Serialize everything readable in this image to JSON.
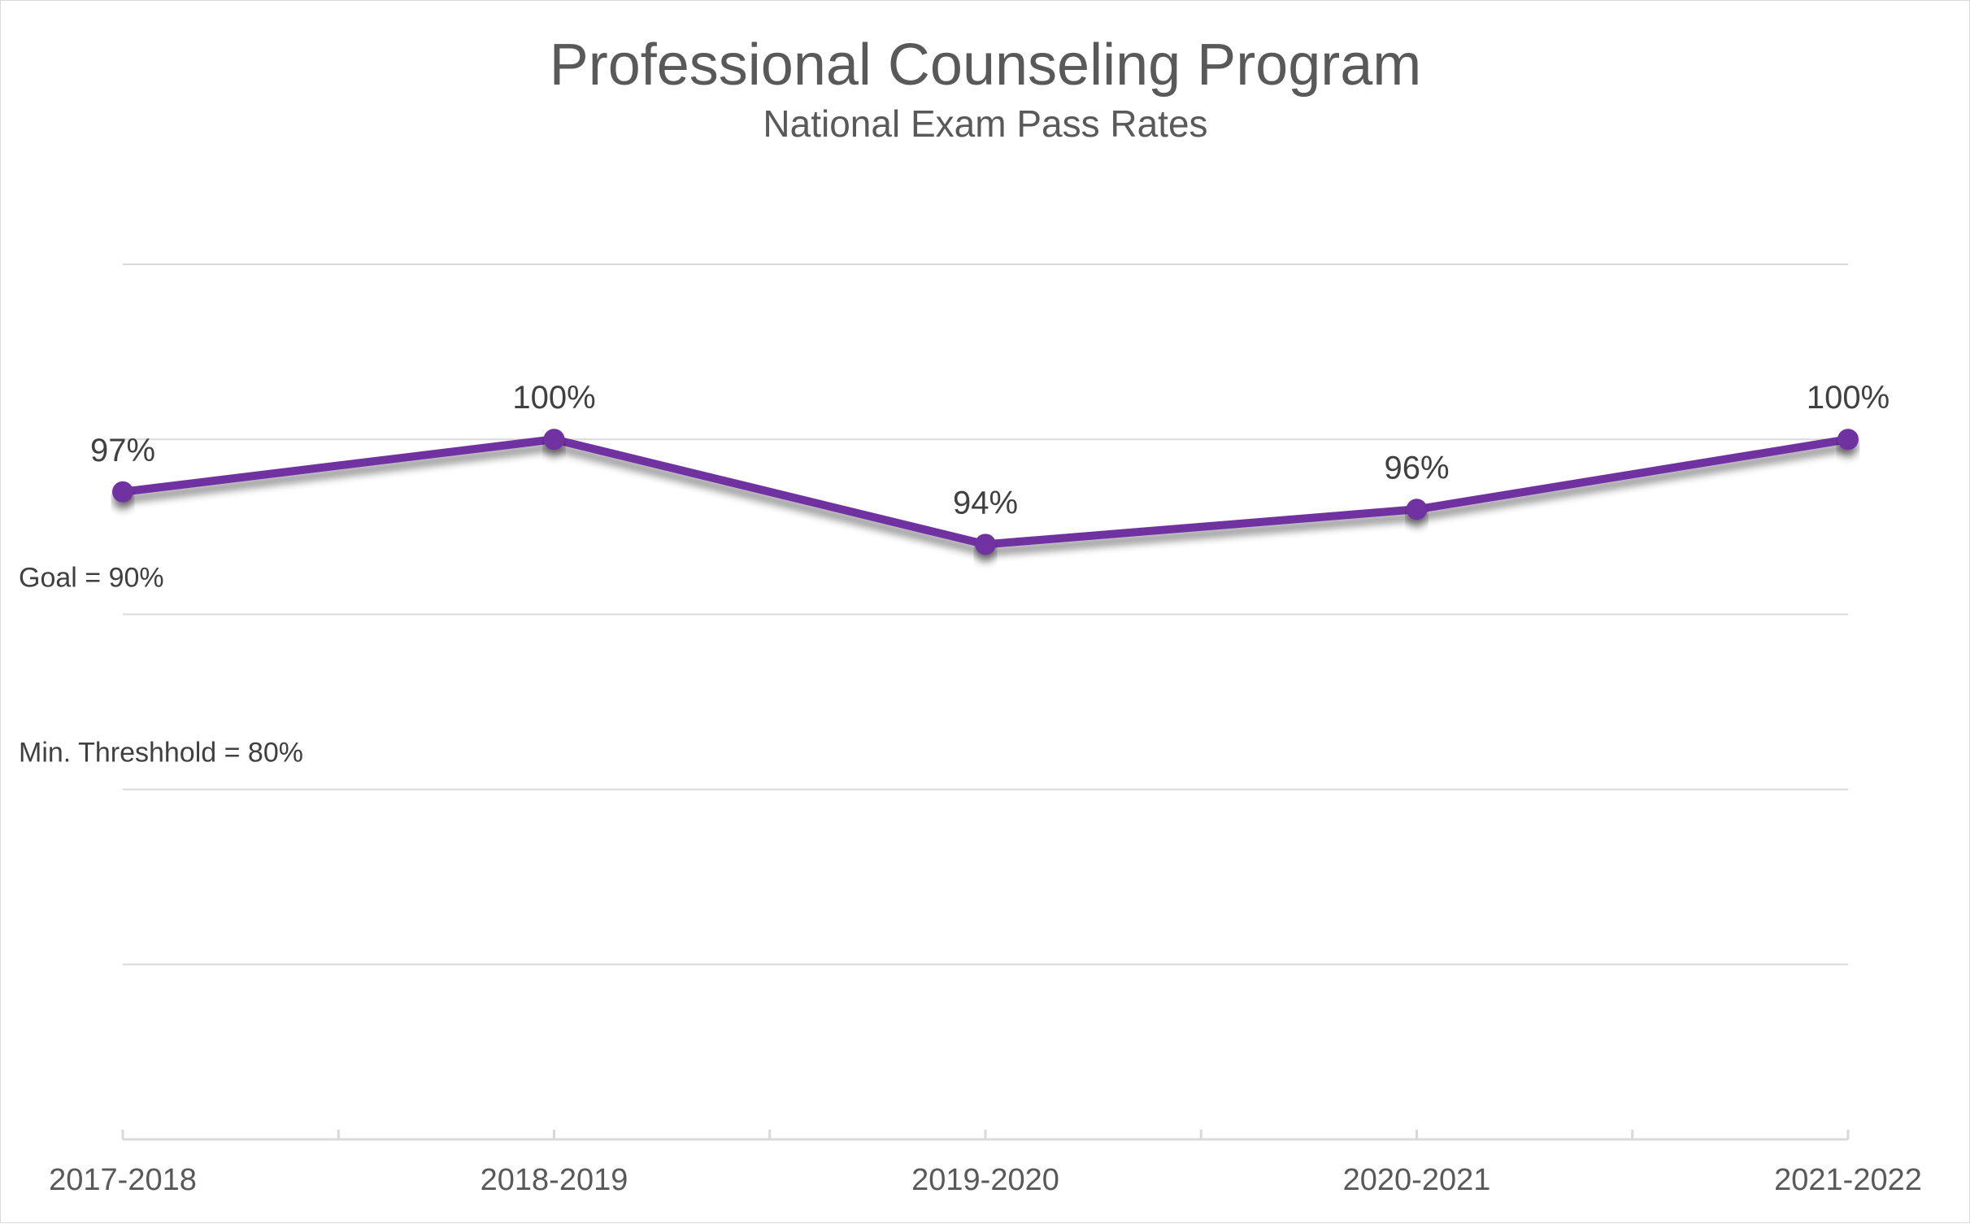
{
  "chart_data": {
    "type": "line",
    "title": "Professional Counseling Program",
    "subtitle": "National Exam Pass Rates",
    "categories": [
      "2017-2018",
      "2018-2019",
      "2019-2020",
      "2020-2021",
      "2021-2022"
    ],
    "series": [
      {
        "values": [
          97,
          100,
          94,
          96,
          100
        ],
        "labels": [
          "97%",
          "100%",
          "94%",
          "96%",
          "100%"
        ],
        "color": "#7030a0"
      }
    ],
    "reference_lines": [
      {
        "label": "Goal = 90%",
        "value": 90,
        "color": "#ffc000"
      },
      {
        "label": "Min. Threshhold = 80%",
        "value": 80,
        "color": "#a6a6a6"
      }
    ],
    "ylim": [
      60,
      110
    ],
    "grid": true,
    "xlabel": "",
    "ylabel": ""
  }
}
